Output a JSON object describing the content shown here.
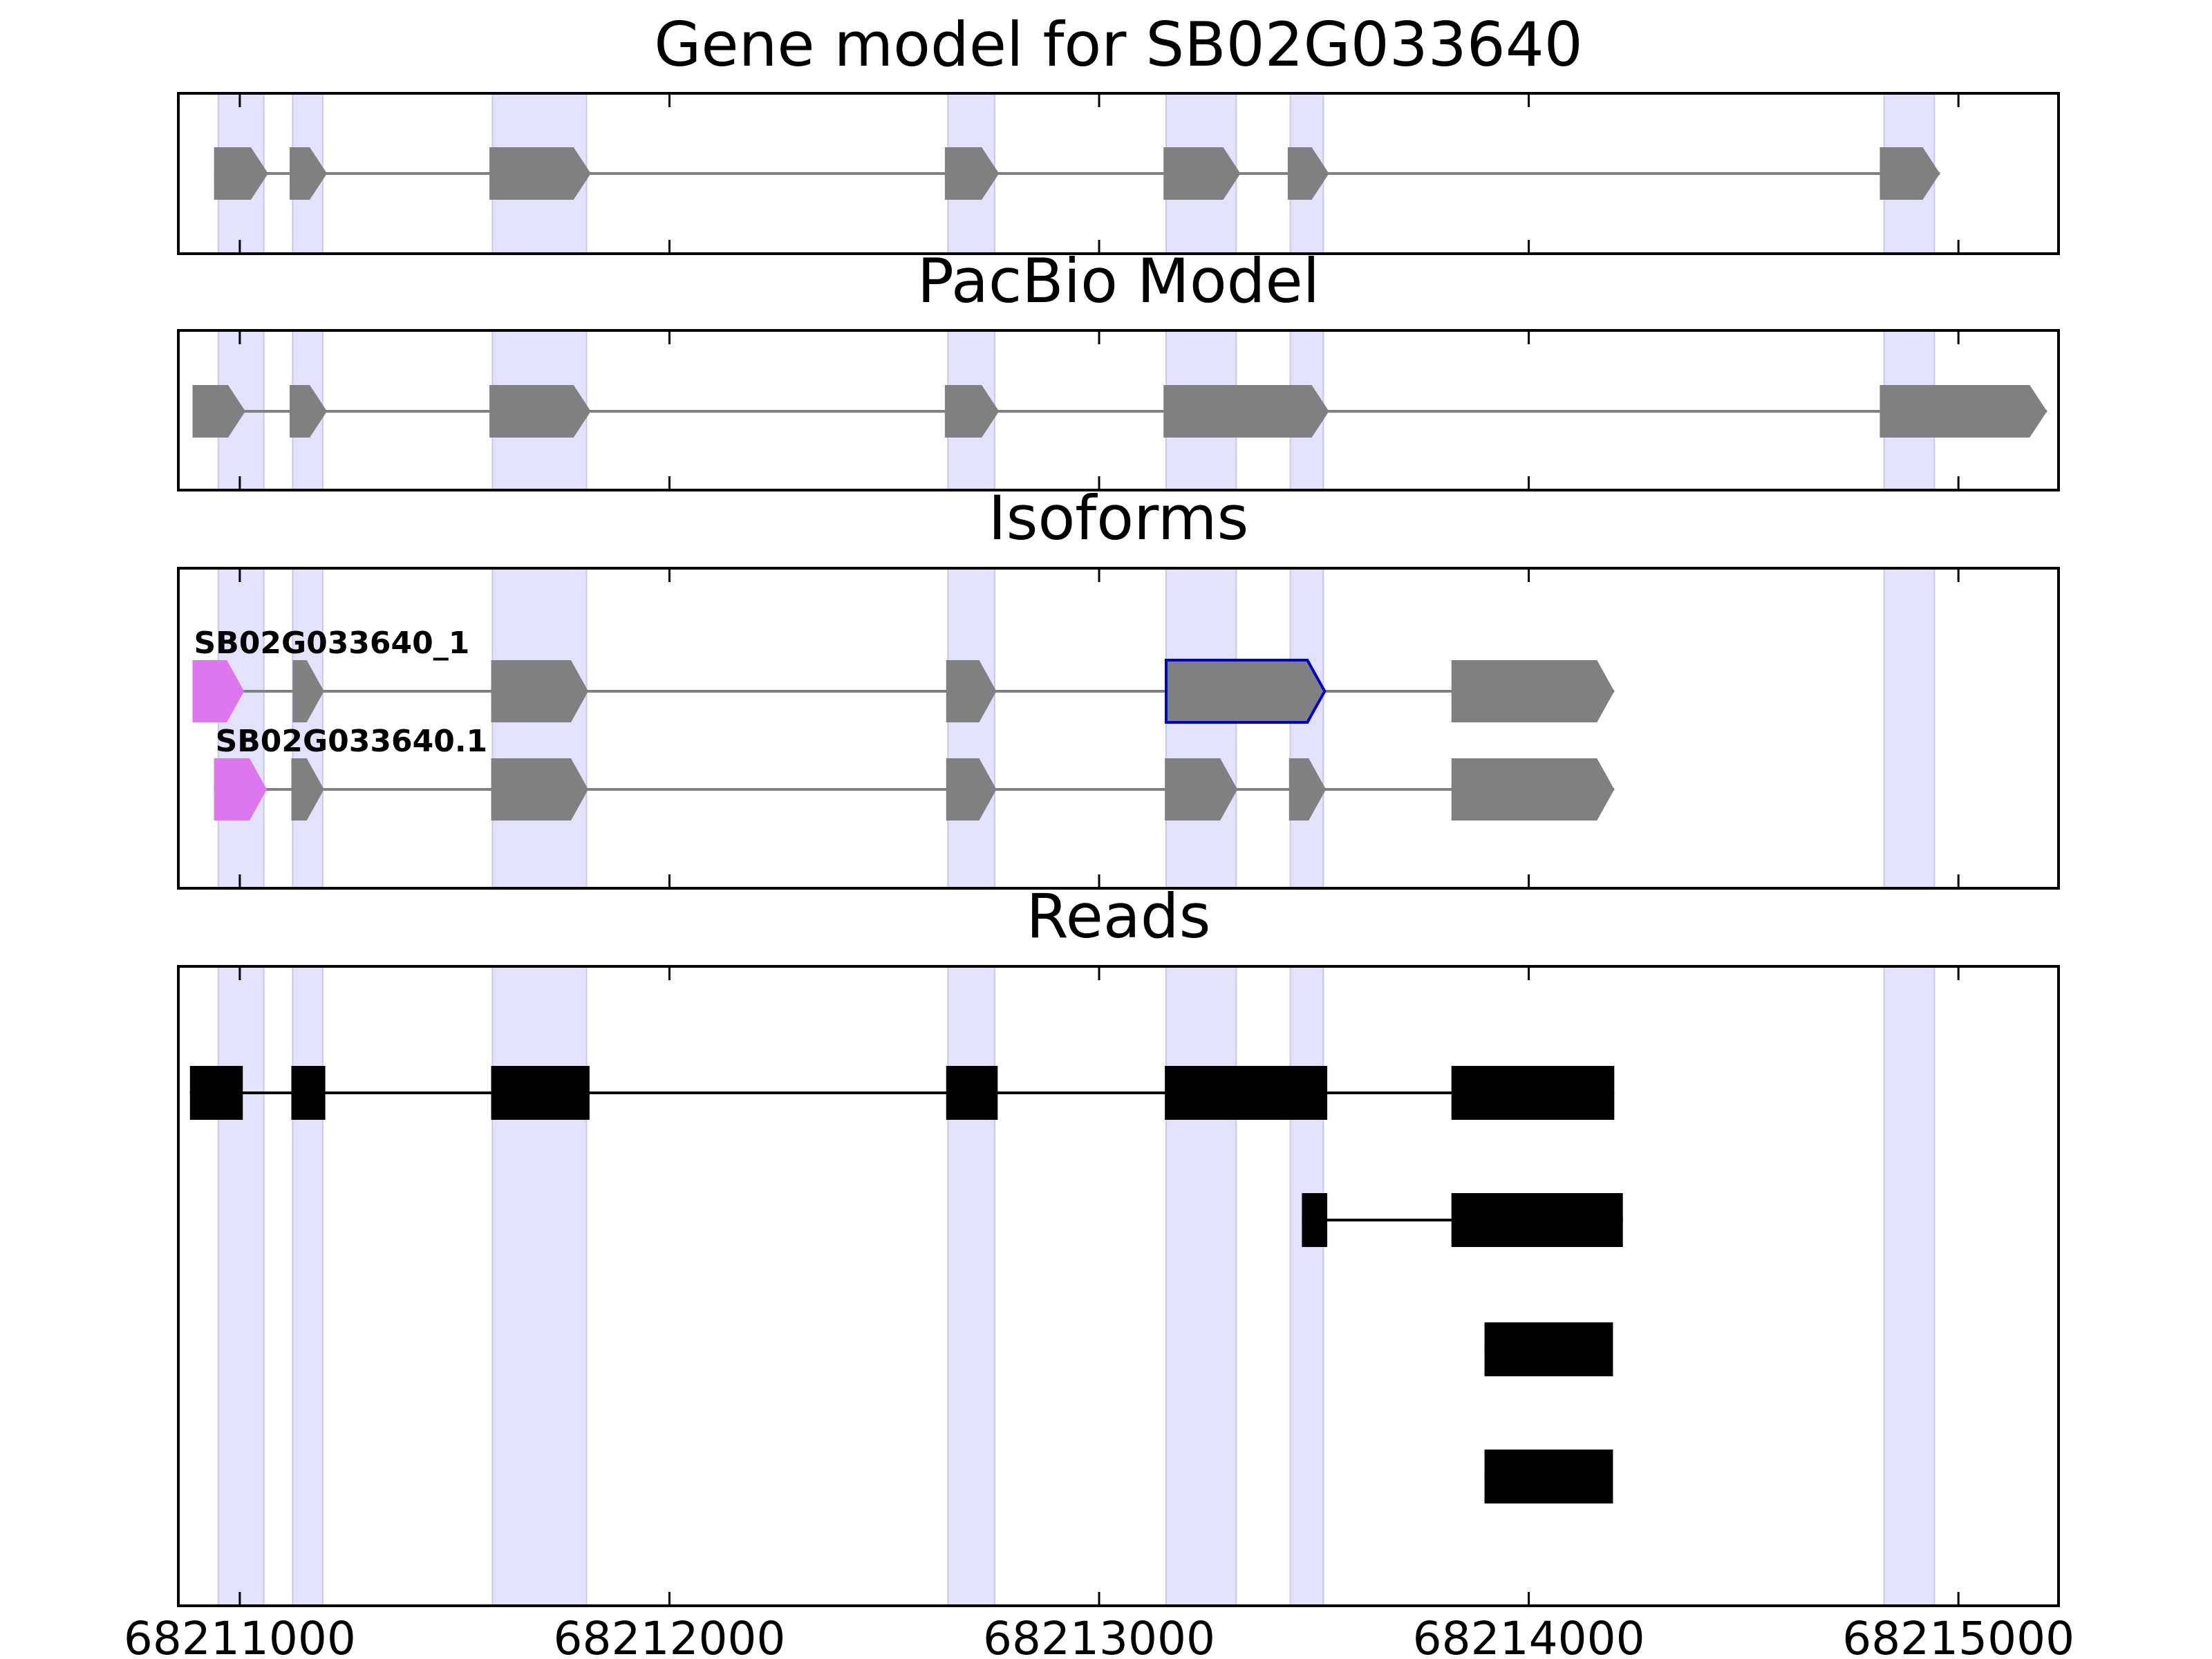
{
  "chart_data": {
    "type": "gene-tracks",
    "xlim": [
      68210857,
      68215233
    ],
    "xticks": [
      68211000,
      68212000,
      68213000,
      68214000,
      68215000
    ],
    "highlight_color": "#e2e2fc",
    "highlights": [
      [
        68210950,
        68211056
      ],
      [
        68211123,
        68211193
      ],
      [
        68211588,
        68211807
      ],
      [
        68212648,
        68212757
      ],
      [
        68213156,
        68213319
      ],
      [
        68213445,
        68213522
      ],
      [
        68214827,
        68214944
      ]
    ],
    "panels": [
      {
        "title": "Gene model for SB02G033640",
        "tracks": [
          {
            "shape": "arrow",
            "color": "#808080",
            "line_color": "#808080",
            "exons": [
              [
                68210940,
                68211066
              ],
              [
                68211116,
                68211203
              ],
              [
                68211581,
                68211817
              ],
              [
                68212641,
                68212767
              ],
              [
                68213150,
                68213329
              ],
              [
                68213439,
                68213535
              ],
              [
                68214817,
                68214957
              ]
            ]
          }
        ]
      },
      {
        "title": "PacBio Model",
        "tracks": [
          {
            "shape": "arrow",
            "color": "#808080",
            "line_color": "#808080",
            "exons": [
              [
                68210890,
                68211013
              ],
              [
                68211116,
                68211203
              ],
              [
                68211581,
                68211817
              ],
              [
                68212641,
                68212767
              ],
              [
                68213150,
                68213535
              ],
              [
                68214817,
                68215206
              ]
            ]
          }
        ]
      },
      {
        "title": "Isoforms",
        "tracks": [
          {
            "name": "SB02G033640_1",
            "shape": "arrow",
            "color": "#808080",
            "line_color": "#808080",
            "first_exon_color": "#dd77ee",
            "outlined_exons": [
              4
            ],
            "outline_color": "#0000cc",
            "exons": [
              [
                68210890,
                68211010
              ],
              [
                68211123,
                68211196
              ],
              [
                68211585,
                68211811
              ],
              [
                68212644,
                68212761
              ],
              [
                68213156,
                68213525
              ],
              [
                68213820,
                68214199
              ]
            ]
          },
          {
            "name": "SB02G033640.1",
            "shape": "arrow",
            "color": "#808080",
            "line_color": "#808080",
            "first_exon_color": "#dd77ee",
            "exons": [
              [
                68210940,
                68211063
              ],
              [
                68211120,
                68211196
              ],
              [
                68211585,
                68211811
              ],
              [
                68212644,
                68212761
              ],
              [
                68213153,
                68213322
              ],
              [
                68213442,
                68213528
              ],
              [
                68213820,
                68214199
              ]
            ]
          }
        ]
      },
      {
        "title": "Reads",
        "tracks": [
          {
            "shape": "box",
            "color": "#000000",
            "line_color": "#000000",
            "exons": [
              [
                68210884,
                68211007
              ],
              [
                68211120,
                68211199
              ],
              [
                68211585,
                68211814
              ],
              [
                68212644,
                68212764
              ],
              [
                68213153,
                68213531
              ],
              [
                68213820,
                68214199
              ]
            ]
          },
          {
            "shape": "box",
            "color": "#000000",
            "line_color": "#000000",
            "exons": [
              [
                68213472,
                68213531
              ],
              [
                68213820,
                68214219
              ]
            ]
          },
          {
            "shape": "box",
            "color": "#000000",
            "line_color": "#000000",
            "exons": [
              [
                68213897,
                68214196
              ]
            ]
          },
          {
            "shape": "box",
            "color": "#000000",
            "line_color": "#000000",
            "exons": [
              [
                68213897,
                68214196
              ]
            ]
          }
        ]
      }
    ]
  }
}
